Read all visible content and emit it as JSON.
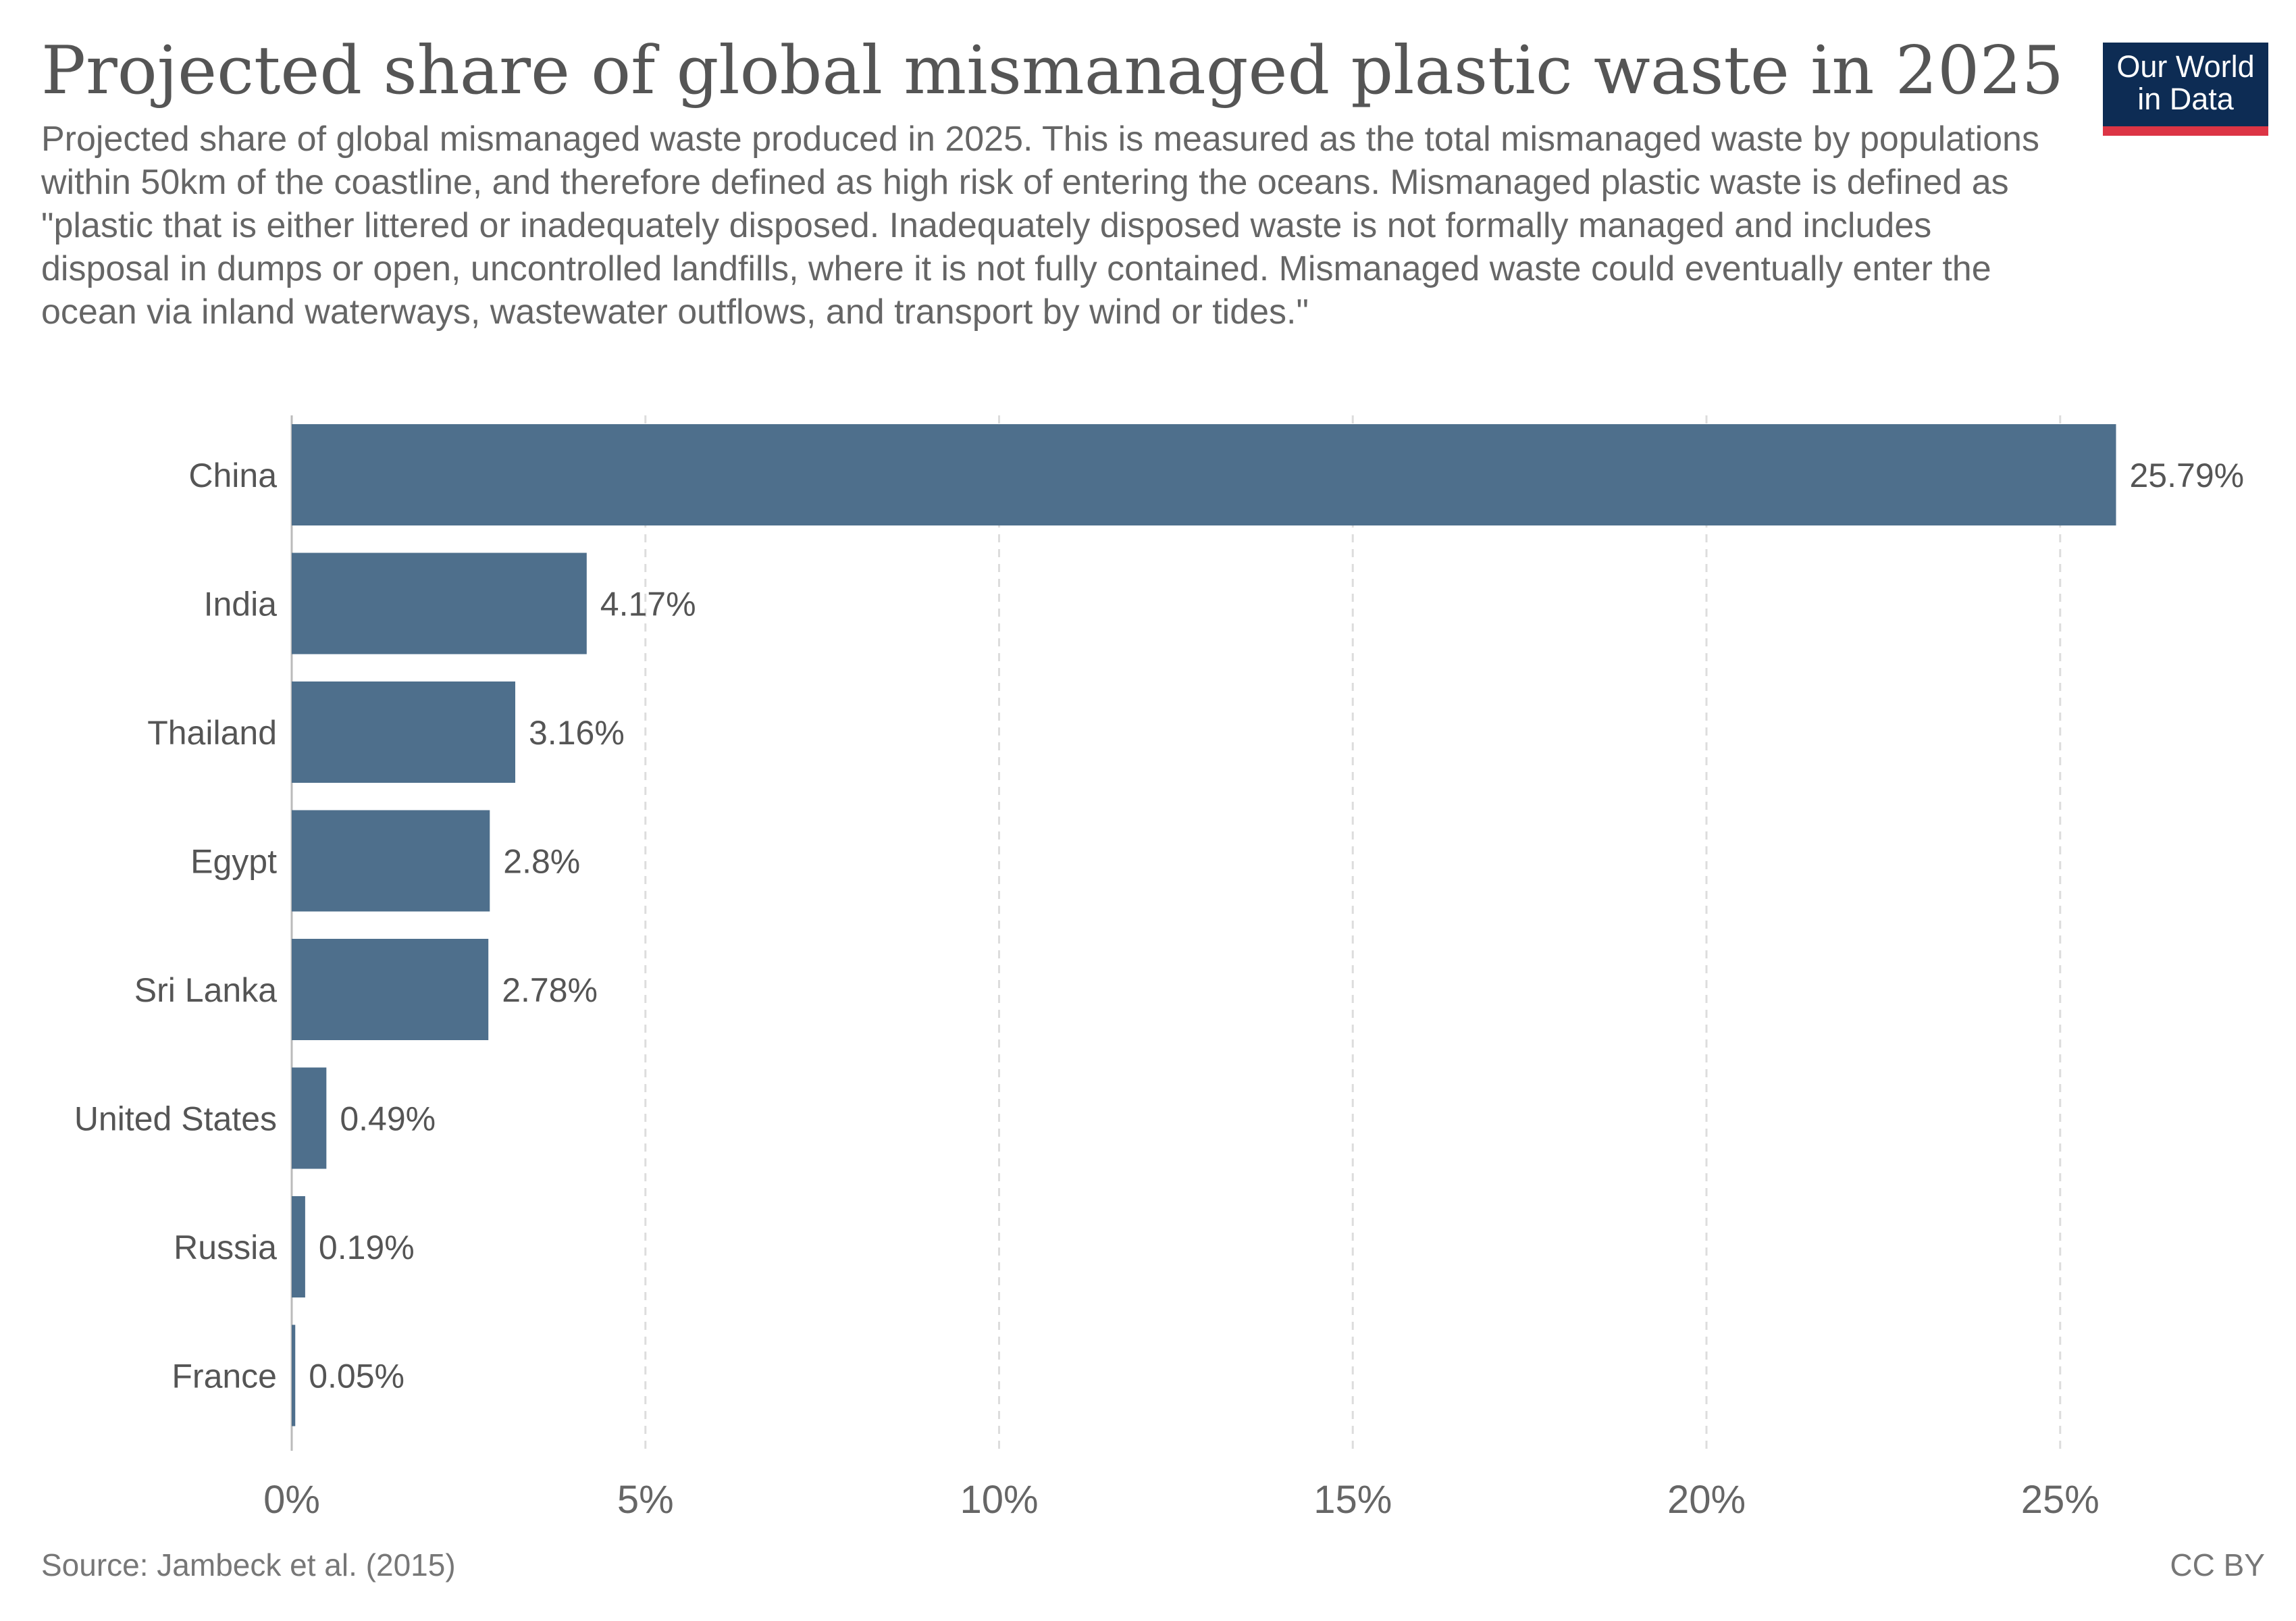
{
  "title": "Projected share of global mismanaged plastic waste in 2025",
  "subtitle": "Projected share of global mismanaged waste produced in 2025. This is measured as the total mismanaged waste by populations within 50km of the coastline, and therefore defined as high risk of entering the oceans. Mismanaged plastic waste is defined as \"plastic that is either littered or inadequately disposed. Inadequately disposed waste is not formally managed and includes disposal in dumps or open, uncontrolled landfills, where it is not fully contained. Mismanaged waste could eventually enter the ocean via inland waterways, wastewater outflows, and transport by wind or tides.\"",
  "logo": {
    "line1": "Our World",
    "line2": "in Data"
  },
  "source": "Source: Jambeck et al. (2015)",
  "license": "CC BY",
  "colors": {
    "bar": "#4e6f8c",
    "grid": "#dddddd",
    "text": "#555555",
    "logo_bg": "#0d2c54",
    "logo_accent": "#dc3545"
  },
  "chart_data": {
    "type": "bar",
    "orientation": "horizontal",
    "categories": [
      "China",
      "India",
      "Thailand",
      "Egypt",
      "Sri Lanka",
      "United States",
      "Russia",
      "France"
    ],
    "values": [
      25.79,
      4.17,
      3.16,
      2.8,
      2.78,
      0.49,
      0.19,
      0.05
    ],
    "value_labels": [
      "25.79%",
      "4.17%",
      "3.16%",
      "2.8%",
      "2.78%",
      "0.49%",
      "0.19%",
      "0.05%"
    ],
    "xlim": [
      0,
      27
    ],
    "xticks": [
      0,
      5,
      10,
      15,
      20,
      25
    ],
    "xtick_labels": [
      "0%",
      "5%",
      "10%",
      "15%",
      "20%",
      "25%"
    ],
    "grid": "vertical dashed"
  }
}
